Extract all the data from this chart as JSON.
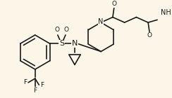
{
  "background_color": "#fbf6e8",
  "line_color": "#1a1a1a",
  "lw": 1.2,
  "figsize": [
    2.44,
    1.4
  ],
  "dpi": 100,
  "xlim": [
    0,
    244
  ],
  "ylim": [
    0,
    140
  ]
}
